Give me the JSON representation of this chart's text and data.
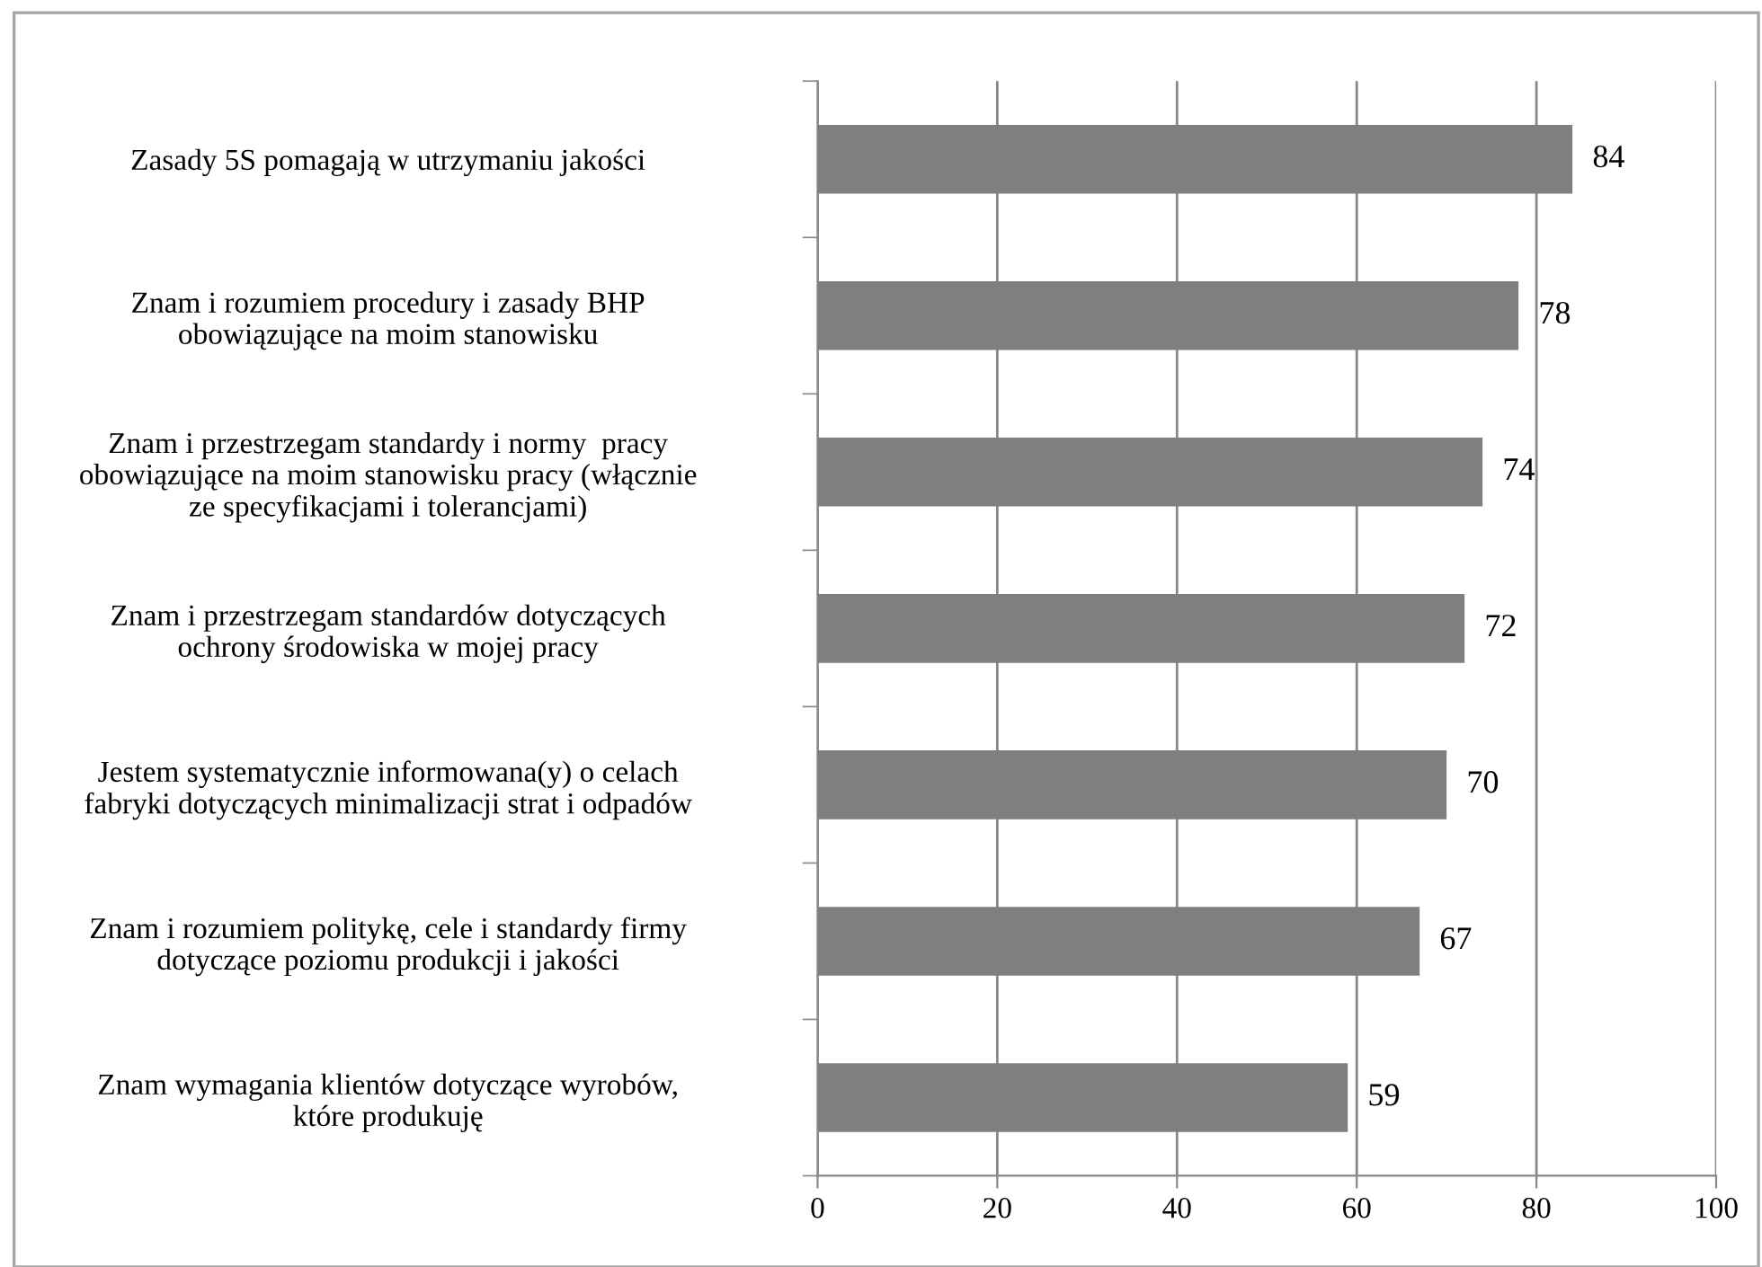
{
  "chart_data": {
    "type": "bar",
    "orientation": "horizontal",
    "categories": [
      "Zasady 5S pomagają w utrzymaniu jakości",
      "Znam i rozumiem procedury i zasady BHP\nobowiązujące na moim stanowisku",
      "Znam i przestrzegam standardy i normy  pracy\nobowiązujące na moim stanowisku pracy (włącznie\nze specyfikacjami i tolerancjami)",
      "Znam i przestrzegam standardów dotyczących\nochrony środowiska w mojej pracy",
      "Jestem systematycznie informowana(y) o celach\nfabryki dotyczących minimalizacji strat i odpadów",
      "Znam i rozumiem politykę, cele i standardy firmy\ndotyczące poziomu produkcji i jakości",
      "Znam wymagania klientów dotyczące wyrobów,\nktóre produkuję"
    ],
    "values": [
      84,
      78,
      74,
      72,
      70,
      67,
      59
    ],
    "color": "#7f7f7f",
    "xlim": [
      0,
      100
    ],
    "xticks": [
      0,
      20,
      40,
      60,
      80,
      100
    ],
    "grid": "x",
    "data_labels": true
  }
}
